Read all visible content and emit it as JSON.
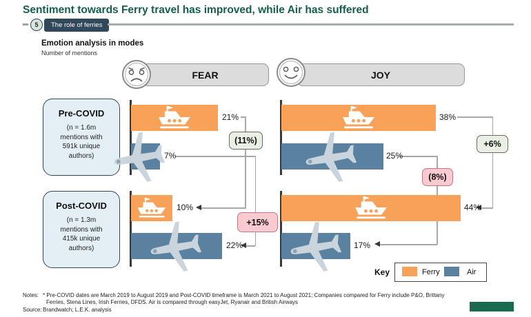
{
  "slide": {
    "title": "Sentiment towards Ferry travel has improved, while Air has suffered",
    "section_number": "5",
    "section_label": "The role of ferries"
  },
  "chart_header": {
    "title": "Emotion analysis in modes",
    "subtitle": "Number of mentions"
  },
  "emotions": {
    "fear": "FEAR",
    "joy": "JOY"
  },
  "period_boxes": [
    {
      "name": "Pre-COVID",
      "lines": [
        "(n = 1.6m",
        "mentions with",
        "591k unique",
        "authors)"
      ]
    },
    {
      "name": "Post-COVID",
      "lines": [
        "(n = 1.3m",
        "mentions with",
        "415k unique",
        "authors)"
      ]
    }
  ],
  "chart_data": {
    "type": "bar",
    "title": "Emotion analysis in modes",
    "unit": "% of mentions",
    "series_names": [
      "Ferry",
      "Air"
    ],
    "groups": [
      {
        "emotion": "FEAR",
        "period": "Pre-COVID",
        "values": {
          "ferry": 21,
          "air": 7
        }
      },
      {
        "emotion": "FEAR",
        "period": "Post-COVID",
        "values": {
          "ferry": 10,
          "air": 22
        }
      },
      {
        "emotion": "JOY",
        "period": "Pre-COVID",
        "values": {
          "ferry": 38,
          "air": 25
        }
      },
      {
        "emotion": "JOY",
        "period": "Post-COVID",
        "values": {
          "ferry": 44,
          "air": 17
        }
      }
    ],
    "changes": [
      {
        "emotion": "FEAR",
        "series": "Ferry",
        "label": "(11%)",
        "value": -11,
        "sentiment": "good"
      },
      {
        "emotion": "FEAR",
        "series": "Air",
        "label": "+15%",
        "value": 15,
        "sentiment": "bad"
      },
      {
        "emotion": "JOY",
        "series": "Ferry",
        "label": "+6%",
        "value": 6,
        "sentiment": "good"
      },
      {
        "emotion": "JOY",
        "series": "Air",
        "label": "(8%)",
        "value": -8,
        "sentiment": "bad"
      }
    ]
  },
  "bar_labels": {
    "fear_pre_ferry": "21%",
    "fear_pre_air": "7%",
    "fear_post_ferry": "10%",
    "fear_post_air": "22%",
    "joy_pre_ferry": "38%",
    "joy_pre_air": "25%",
    "joy_post_ferry": "44%",
    "joy_post_air": "17%"
  },
  "key": {
    "label": "Key",
    "items": [
      {
        "name": "Ferry",
        "color": "#F7A258"
      },
      {
        "name": "Air",
        "color": "#5A81A0"
      }
    ]
  },
  "footer": {
    "notes_label": "Notes:",
    "note_line1": "* Pre-COVID dates are March 2019 to August 2019 and Post-COVID timeframe is March 2021 to August 2021; Companies compared for Ferry include P&O, Brittany",
    "note_line2": "Ferries, Stena Lines, Irish Ferries, DFDS. Air is compared through easyJet, Ryanair and British Airways",
    "source_label": "Source:",
    "source_text": "Brandwatch; L.E.K. analysis"
  },
  "colors": {
    "ferry": "#F7A258",
    "air": "#5A81A0",
    "title_green": "#14604B",
    "navy": "#31475A",
    "good_change_fill": "#E9EFE5",
    "bad_change_fill": "#F9CBD0",
    "logo_green": "#1A6A50"
  }
}
